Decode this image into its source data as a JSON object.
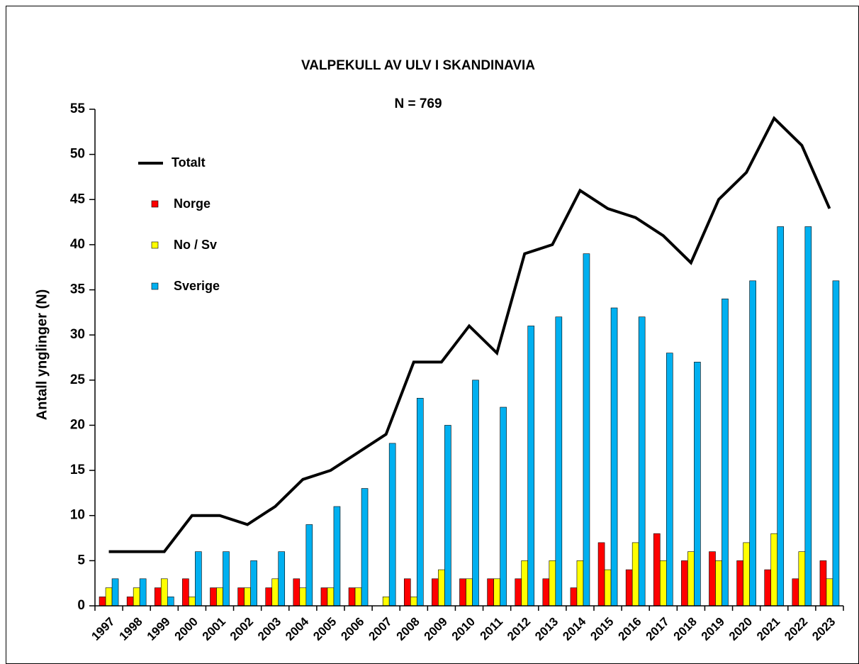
{
  "chart_data": {
    "type": "bar",
    "title": "VALPEKULL AV ULV I SKANDINAVIA",
    "subtitle": "N = 769",
    "y_label": "Antall ynglinger (N)",
    "categories": [
      "1997",
      "1998",
      "1999",
      "2000",
      "2001",
      "2002",
      "2003",
      "2004",
      "2005",
      "2006",
      "2007",
      "2008",
      "2009",
      "2010",
      "2011",
      "2012",
      "2013",
      "2014",
      "2015",
      "2016",
      "2017",
      "2018",
      "2019",
      "2020",
      "2021",
      "2022",
      "2023"
    ],
    "series": [
      {
        "name": "Totalt",
        "type": "line",
        "color": "#000000",
        "values": [
          6,
          6,
          6,
          10,
          10,
          9,
          11,
          14,
          15,
          17,
          19,
          27,
          27,
          31,
          28,
          39,
          40,
          46,
          44,
          43,
          41,
          38,
          45,
          48,
          54,
          51,
          44
        ]
      },
      {
        "name": "Norge",
        "type": "bar",
        "color": "#ff0000",
        "values": [
          1,
          1,
          2,
          3,
          2,
          2,
          2,
          3,
          2,
          2,
          0,
          3,
          3,
          3,
          3,
          3,
          3,
          2,
          7,
          4,
          8,
          5,
          6,
          5,
          4,
          3,
          5
        ]
      },
      {
        "name": "No / Sv",
        "type": "bar",
        "color": "#ffff00",
        "values": [
          2,
          2,
          3,
          1,
          2,
          2,
          3,
          2,
          2,
          2,
          1,
          1,
          4,
          3,
          3,
          5,
          5,
          5,
          4,
          7,
          5,
          6,
          5,
          7,
          8,
          6,
          3
        ]
      },
      {
        "name": "Sverige",
        "type": "bar",
        "color": "#00b0f0",
        "values": [
          3,
          3,
          1,
          6,
          6,
          5,
          6,
          9,
          11,
          13,
          18,
          23,
          20,
          25,
          22,
          31,
          32,
          39,
          33,
          32,
          28,
          27,
          34,
          36,
          42,
          42,
          36
        ]
      }
    ],
    "ylim": [
      0,
      55
    ],
    "yticks": [
      0,
      5,
      10,
      15,
      20,
      25,
      30,
      35,
      40,
      45,
      50,
      55
    ],
    "grid": false,
    "legend": "upper left"
  }
}
